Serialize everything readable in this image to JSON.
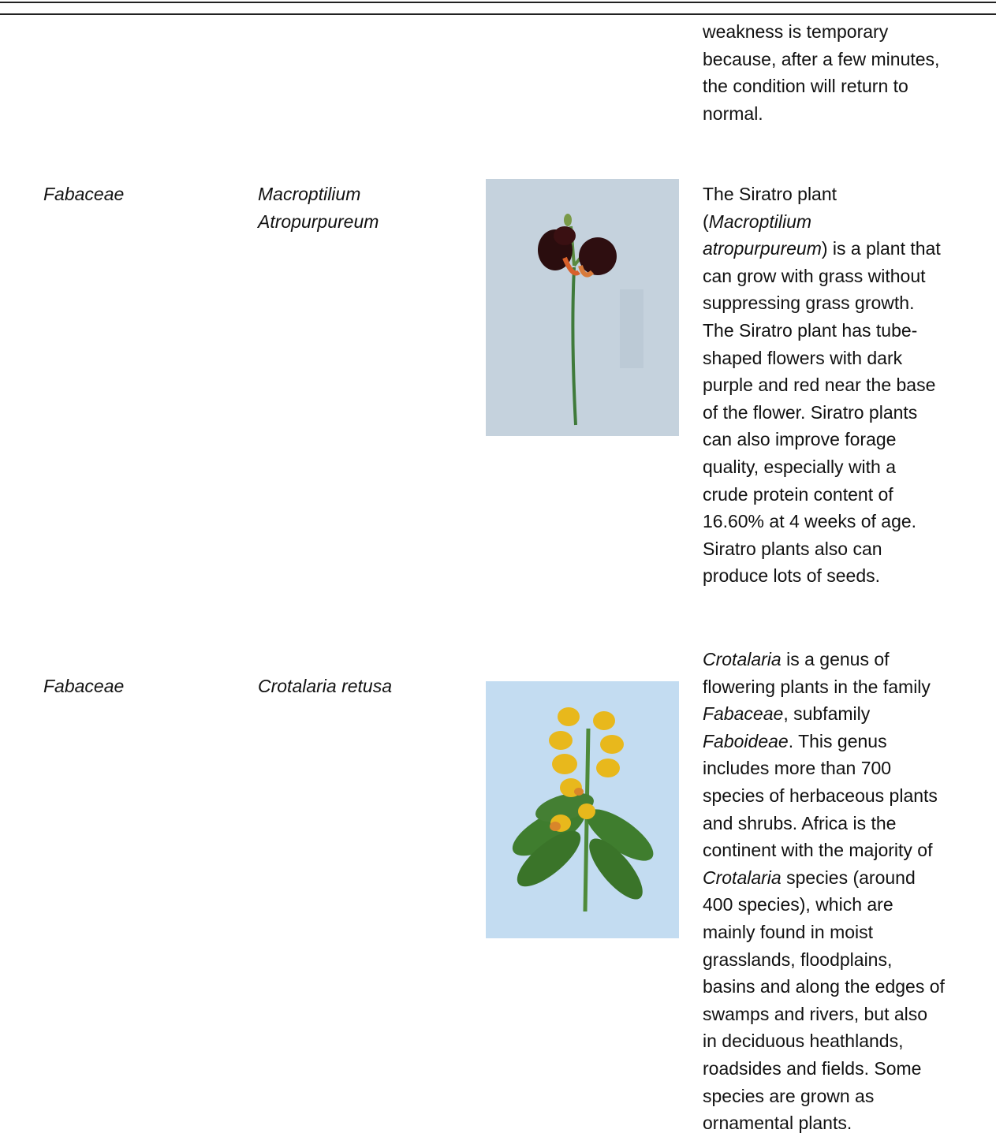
{
  "table": {
    "rows": [
      {
        "description": [
          [
            "weakness is temporary"
          ],
          [
            "because, after a few minutes,"
          ],
          [
            "the condition will return to"
          ],
          [
            "normal."
          ]
        ]
      },
      {
        "family": "Fabaceae",
        "species": [
          "Macroptilium",
          "Atropurpureum"
        ],
        "description": [
          [
            "The Siratro plant"
          ],
          [
            "(",
            {
              "text": "Macroptilium",
              "italic": true
            }
          ],
          [
            {
              "text": "atropurpureum",
              "italic": true
            },
            ") is a plant that"
          ],
          [
            "can grow with grass without"
          ],
          [
            "suppressing grass growth."
          ],
          [
            "The Siratro plant has tube-"
          ],
          [
            "shaped flowers with dark"
          ],
          [
            "purple and red near the base"
          ],
          [
            "of the flower. Siratro plants"
          ],
          [
            "can also improve forage"
          ],
          [
            "quality, especially with a"
          ],
          [
            "crude protein content of"
          ],
          [
            "16.60% at 4 weeks of age."
          ],
          [
            "Siratro plants also can"
          ],
          [
            "produce lots of seeds."
          ]
        ]
      },
      {
        "family": "Fabaceae",
        "species": [
          "Crotalaria retusa"
        ],
        "description": [
          [
            {
              "text": "Crotalaria",
              "italic": true
            },
            " is a genus of"
          ],
          [
            "flowering plants in the family"
          ],
          [
            {
              "text": "Fabaceae",
              "italic": true
            },
            ", subfamily"
          ],
          [
            {
              "text": "Faboideae",
              "italic": true
            },
            ". This genus"
          ],
          [
            "includes more than 700"
          ],
          [
            "species of herbaceous plants"
          ],
          [
            "and shrubs. Africa is the"
          ],
          [
            "continent with the majority of"
          ],
          [
            {
              "text": "Crotalaria",
              "italic": true
            },
            " species (around"
          ],
          [
            "400 species), which are"
          ],
          [
            "mainly found in moist"
          ],
          [
            "grasslands, floodplains,"
          ],
          [
            "basins and along the edges of"
          ],
          [
            "swamps and rivers, but also"
          ],
          [
            "in deciduous heathlands,"
          ],
          [
            "roadsides and fields. Some"
          ],
          [
            "species are grown as"
          ],
          [
            "ornamental plants."
          ]
        ]
      }
    ]
  }
}
